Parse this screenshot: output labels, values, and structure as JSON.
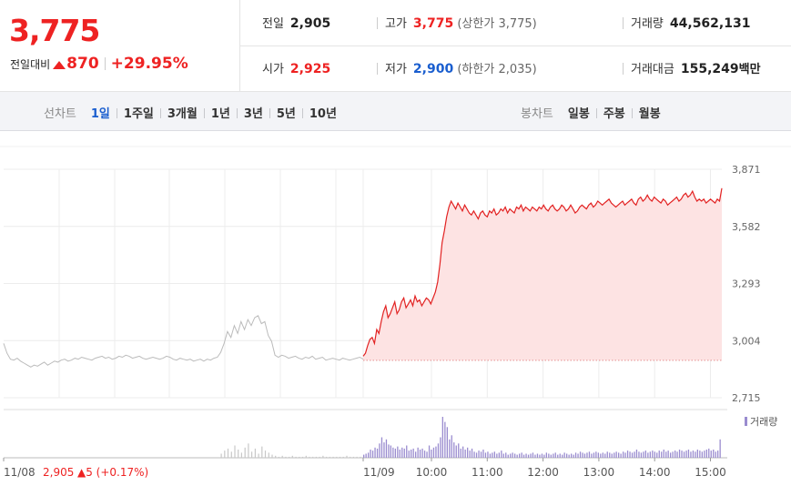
{
  "quote": {
    "price": "3,775",
    "change_label": "전일대비",
    "change": "870",
    "change_rate": "+29.95%",
    "stats": [
      {
        "label": "전일",
        "value": "2,905",
        "color": "dark"
      },
      {
        "label": "고가",
        "value": "3,775",
        "color": "red",
        "sub": "(상한가 3,775)"
      },
      {
        "label": "거래량",
        "value": "44,562,131",
        "color": "dark"
      },
      {
        "label": "시가",
        "value": "2,925",
        "color": "red"
      },
      {
        "label": "저가",
        "value": "2,900",
        "color": "blue",
        "sub": "(하한가 2,035)"
      },
      {
        "label": "거래대금",
        "value": "155,249",
        "color": "dark",
        "sub": "백만"
      }
    ]
  },
  "tabs": {
    "line_title": "선차트",
    "line_tabs": [
      "1일",
      "1주일",
      "3개월",
      "1년",
      "3년",
      "5년",
      "10년"
    ],
    "line_selected": 0,
    "candle_title": "봉차트",
    "candle_tabs": [
      "일봉",
      "주봉",
      "월봉"
    ]
  },
  "colors": {
    "up": "#e22222",
    "down": "#1a5ecf",
    "prev_line": "#bbbbbb",
    "fill": "#fde3e3",
    "volume": "#9a8ccf",
    "volume_prev": "#c8c8c8"
  },
  "chart_data": [
    {
      "type": "line",
      "title": "",
      "y_ticks": [
        "3,871",
        "3,582",
        "3,293",
        "3,004",
        "2,715"
      ],
      "y_values": [
        3871,
        3582,
        3293,
        3004,
        2715
      ],
      "ylim": [
        2715,
        3871
      ],
      "x_tick_labels": [
        "11/08",
        "11/09",
        "10:00",
        "11:00",
        "12:00",
        "13:00",
        "14:00",
        "15:00"
      ],
      "prev_close": 2905,
      "prev_day_label": "2,905",
      "prev_day_change": "▲5 (+0.17%)",
      "series": [
        {
          "period": "11/08",
          "values": [
            2990,
            2940,
            2910,
            2905,
            2915,
            2900,
            2890,
            2880,
            2870,
            2880,
            2875,
            2885,
            2895,
            2880,
            2890,
            2900,
            2895,
            2905,
            2910,
            2900,
            2905,
            2915,
            2910,
            2920,
            2915,
            2910,
            2905,
            2915,
            2920,
            2925,
            2915,
            2920,
            2910,
            2915,
            2925,
            2920,
            2930,
            2925,
            2915,
            2920,
            2925,
            2915,
            2910,
            2915,
            2920,
            2915,
            2910,
            2915,
            2925,
            2920,
            2910,
            2905,
            2915,
            2910,
            2905,
            2910,
            2900,
            2905,
            2910,
            2900,
            2910,
            2905,
            2915,
            2920,
            2945,
            2990,
            3050,
            3020,
            3080,
            3040,
            3100,
            3060,
            3110,
            3080,
            3120,
            3130,
            3090,
            3100,
            3030,
            3000,
            2930,
            2920,
            2930,
            2925,
            2915,
            2920,
            2925,
            2915,
            2910,
            2920,
            2915,
            2925,
            2910,
            2915,
            2920,
            2905,
            2910,
            2915,
            2910,
            2905,
            2915,
            2910,
            2905,
            2910,
            2915,
            2920,
            2910
          ]
        },
        {
          "period": "11/09",
          "values": [
            2925,
            2940,
            2980,
            3010,
            3020,
            2990,
            3060,
            3040,
            3100,
            3150,
            3180,
            3120,
            3140,
            3170,
            3200,
            3140,
            3160,
            3200,
            3220,
            3170,
            3190,
            3210,
            3180,
            3230,
            3200,
            3210,
            3180,
            3200,
            3220,
            3210,
            3190,
            3220,
            3250,
            3300,
            3390,
            3500,
            3560,
            3630,
            3680,
            3710,
            3690,
            3670,
            3700,
            3680,
            3660,
            3690,
            3670,
            3650,
            3640,
            3660,
            3640,
            3620,
            3650,
            3660,
            3640,
            3630,
            3660,
            3650,
            3670,
            3640,
            3650,
            3670,
            3660,
            3680,
            3650,
            3670,
            3660,
            3650,
            3680,
            3670,
            3690,
            3660,
            3680,
            3670,
            3660,
            3680,
            3670,
            3660,
            3680,
            3670,
            3690,
            3670,
            3660,
            3680,
            3690,
            3670,
            3660,
            3670,
            3690,
            3680,
            3660,
            3670,
            3690,
            3670,
            3650,
            3660,
            3680,
            3690,
            3680,
            3670,
            3690,
            3700,
            3680,
            3690,
            3710,
            3700,
            3690,
            3700,
            3710,
            3720,
            3700,
            3690,
            3680,
            3690,
            3700,
            3710,
            3690,
            3700,
            3710,
            3720,
            3700,
            3690,
            3720,
            3730,
            3710,
            3720,
            3740,
            3720,
            3710,
            3730,
            3720,
            3710,
            3700,
            3720,
            3710,
            3690,
            3700,
            3710,
            3720,
            3730,
            3710,
            3720,
            3740,
            3750,
            3730,
            3740,
            3760,
            3730,
            3710,
            3720,
            3710,
            3720,
            3700,
            3710,
            3720,
            3710,
            3700,
            3720,
            3710,
            3775
          ]
        }
      ]
    },
    {
      "type": "bar",
      "title": "",
      "legend": "거래량",
      "series": [
        {
          "period": "11/08",
          "values": [
            0,
            0,
            0,
            0,
            0,
            0,
            0,
            0,
            0,
            0,
            0,
            0,
            0,
            0,
            0,
            0,
            0,
            0,
            0,
            0,
            0,
            0,
            0,
            0,
            0,
            0,
            0,
            0,
            0,
            0,
            0,
            0,
            0,
            0,
            0,
            0,
            0,
            0,
            0,
            0,
            0,
            0,
            0,
            0,
            0,
            0,
            0,
            0,
            0,
            0,
            0,
            0,
            0,
            0,
            0,
            0,
            0,
            0,
            0,
            0,
            0,
            0,
            0,
            0,
            4,
            7,
            9,
            6,
            12,
            8,
            5,
            10,
            14,
            6,
            9,
            4,
            11,
            7,
            5,
            3,
            2,
            1,
            2,
            1,
            1,
            2,
            1,
            1,
            1,
            2,
            1,
            1,
            1,
            1,
            2,
            1,
            1,
            1,
            1,
            1,
            1,
            2,
            1,
            1,
            1,
            1,
            2
          ]
        },
        {
          "period": "11/09",
          "values": [
            3,
            4,
            5,
            8,
            7,
            10,
            9,
            14,
            20,
            15,
            18,
            13,
            12,
            10,
            9,
            11,
            8,
            10,
            9,
            12,
            7,
            8,
            9,
            6,
            10,
            8,
            9,
            7,
            6,
            12,
            8,
            10,
            11,
            14,
            20,
            40,
            35,
            30,
            18,
            22,
            15,
            12,
            14,
            9,
            11,
            8,
            10,
            7,
            9,
            6,
            5,
            7,
            6,
            8,
            5,
            6,
            4,
            5,
            6,
            4,
            5,
            7,
            4,
            5,
            3,
            4,
            5,
            4,
            3,
            4,
            5,
            3,
            4,
            3,
            4,
            5,
            3,
            4,
            3,
            4,
            3,
            5,
            4,
            3,
            4,
            5,
            3,
            4,
            3,
            5,
            4,
            3,
            4,
            3,
            5,
            4,
            6,
            5,
            4,
            5,
            6,
            4,
            5,
            6,
            5,
            4,
            5,
            4,
            6,
            5,
            4,
            5,
            6,
            5,
            4,
            6,
            5,
            7,
            6,
            5,
            6,
            8,
            6,
            5,
            6,
            7,
            5,
            6,
            7,
            6,
            5,
            7,
            6,
            8,
            6,
            7,
            5,
            6,
            7,
            6,
            8,
            7,
            6,
            7,
            8,
            6,
            7,
            6,
            8,
            7,
            6,
            7,
            8,
            9,
            7,
            8,
            6,
            7,
            18
          ]
        }
      ]
    }
  ]
}
